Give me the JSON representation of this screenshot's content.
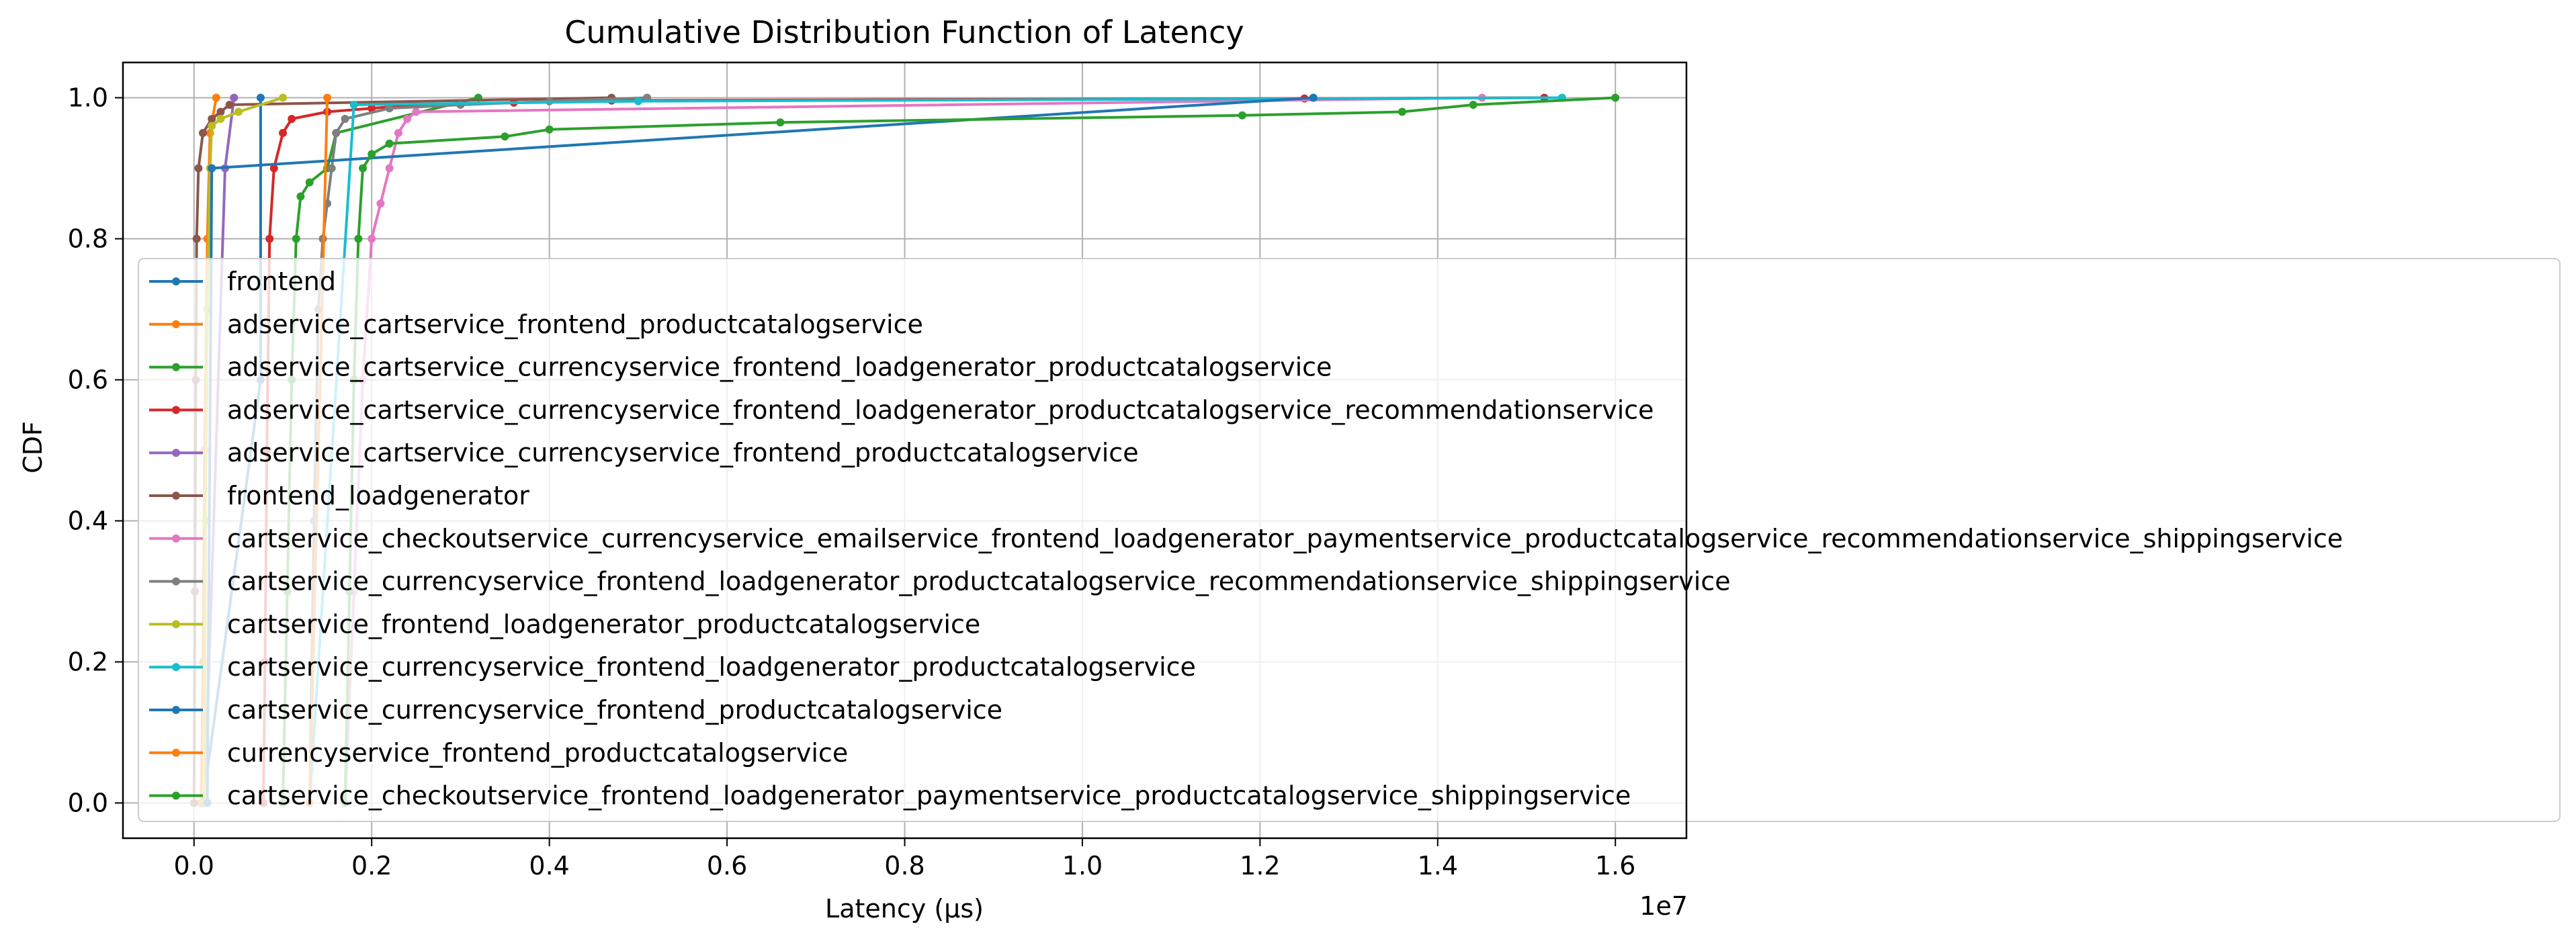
{
  "chart_data": {
    "type": "line",
    "title": "Cumulative Distribution Function of Latency",
    "xlabel": "Latency (µs)",
    "ylabel": "CDF",
    "x_offset_label": "1e7",
    "xlim": [
      -800000,
      16800000
    ],
    "ylim": [
      -0.05,
      1.05
    ],
    "x_scale_factor": 10000000,
    "x_ticks": [
      0,
      2000000,
      4000000,
      6000000,
      8000000,
      10000000,
      12000000,
      14000000,
      16000000
    ],
    "x_tick_labels": [
      "0.0",
      "0.2",
      "0.4",
      "0.6",
      "0.8",
      "1.0",
      "1.2",
      "1.4",
      "1.6"
    ],
    "y_ticks": [
      0.0,
      0.2,
      0.4,
      0.6,
      0.8,
      1.0
    ],
    "y_tick_labels": [
      "0.0",
      "0.2",
      "0.4",
      "0.6",
      "0.8",
      "1.0"
    ],
    "grid": true,
    "legend_placement": "center-left",
    "series": [
      {
        "name": "frontend",
        "color": "#1f77b4",
        "x": [
          100000,
          750000,
          750000
        ],
        "y": [
          0.0,
          0.6,
          1.0
        ]
      },
      {
        "name": "adservice_cartservice_frontend_productcatalogservice",
        "color": "#ff7f0e",
        "x": [
          80000,
          100000,
          120000,
          150000,
          180000,
          250000
        ],
        "y": [
          0.0,
          0.2,
          0.5,
          0.8,
          0.95,
          1.0
        ]
      },
      {
        "name": "adservice_cartservice_currencyservice_frontend_loadgenerator_productcatalogservice",
        "color": "#2ca02c",
        "x": [
          1000000,
          1050000,
          1100000,
          1150000,
          1200000,
          1300000,
          1500000,
          1600000,
          3200000
        ],
        "y": [
          0.0,
          0.3,
          0.6,
          0.8,
          0.86,
          0.88,
          0.9,
          0.95,
          1.0
        ]
      },
      {
        "name": "adservice_cartservice_currencyservice_frontend_loadgenerator_productcatalogservice_recommendationservice",
        "color": "#d62728",
        "x": [
          780000,
          800000,
          820000,
          850000,
          900000,
          1000000,
          1100000,
          1500000,
          2000000,
          2500000,
          3600000,
          4700000,
          12500000,
          15200000
        ],
        "y": [
          0.0,
          0.2,
          0.5,
          0.8,
          0.9,
          0.95,
          0.97,
          0.98,
          0.985,
          0.99,
          0.993,
          0.996,
          0.999,
          1.0
        ]
      },
      {
        "name": "adservice_cartservice_currencyservice_frontend_productcatalogservice",
        "color": "#9467bd",
        "x": [
          120000,
          350000,
          450000
        ],
        "y": [
          0.0,
          0.9,
          1.0
        ]
      },
      {
        "name": "frontend_loadgenerator",
        "color": "#8c564b",
        "x": [
          0,
          10000,
          20000,
          30000,
          50000,
          100000,
          200000,
          300000,
          400000,
          4700000
        ],
        "y": [
          0.0,
          0.3,
          0.6,
          0.8,
          0.9,
          0.95,
          0.97,
          0.98,
          0.99,
          1.0
        ]
      },
      {
        "name": "cartservice_checkoutservice_currencyservice_emailservice_frontend_loadgenerator_paymentservice_productcatalogservice_recommendationservice_shippingservice",
        "color": "#e377c2",
        "x": [
          1700000,
          1800000,
          1900000,
          2000000,
          2100000,
          2200000,
          2300000,
          2400000,
          2500000,
          14500000
        ],
        "y": [
          0.0,
          0.3,
          0.6,
          0.8,
          0.85,
          0.9,
          0.95,
          0.97,
          0.98,
          1.0
        ]
      },
      {
        "name": "cartservice_currencyservice_frontend_loadgenerator_productcatalogservice_recommendationservice_shippingservice",
        "color": "#7f7f7f",
        "x": [
          1300000,
          1350000,
          1400000,
          1450000,
          1500000,
          1550000,
          1600000,
          1700000,
          2200000,
          3000000,
          4000000,
          5100000
        ],
        "y": [
          0.0,
          0.4,
          0.7,
          0.8,
          0.85,
          0.9,
          0.95,
          0.97,
          0.985,
          0.99,
          0.995,
          1.0
        ]
      },
      {
        "name": "cartservice_frontend_loadgenerator_productcatalogservice",
        "color": "#bcbd22",
        "x": [
          120000,
          130000,
          150000,
          180000,
          200000,
          300000,
          500000,
          1000000
        ],
        "y": [
          0.0,
          0.4,
          0.7,
          0.9,
          0.96,
          0.97,
          0.98,
          1.0
        ]
      },
      {
        "name": "cartservice_currencyservice_frontend_loadgenerator_productcatalogservice",
        "color": "#17becf",
        "x": [
          1300000,
          1800000,
          5000000,
          15400000
        ],
        "y": [
          0.0,
          0.99,
          0.995,
          1.0
        ]
      },
      {
        "name": "cartservice_currencyservice_frontend_productcatalogservice",
        "color": "#1f77b4",
        "x": [
          150000,
          200000,
          12600000
        ],
        "y": [
          0.0,
          0.9,
          1.0
        ]
      },
      {
        "name": "currencyservice_frontend_productcatalogservice",
        "color": "#ff7f0e",
        "x": [
          1300000,
          1500000
        ],
        "y": [
          0.0,
          1.0
        ]
      },
      {
        "name": "cartservice_checkoutservice_frontend_loadgenerator_paymentservice_productcatalogservice_shippingservice",
        "color": "#2ca02c",
        "x": [
          1700000,
          1750000,
          1800000,
          1850000,
          1900000,
          2000000,
          2200000,
          3500000,
          4000000,
          6600000,
          11800000,
          13600000,
          14400000,
          16000000
        ],
        "y": [
          0.0,
          0.3,
          0.6,
          0.8,
          0.9,
          0.92,
          0.935,
          0.945,
          0.955,
          0.965,
          0.975,
          0.98,
          0.99,
          1.0
        ]
      }
    ]
  }
}
